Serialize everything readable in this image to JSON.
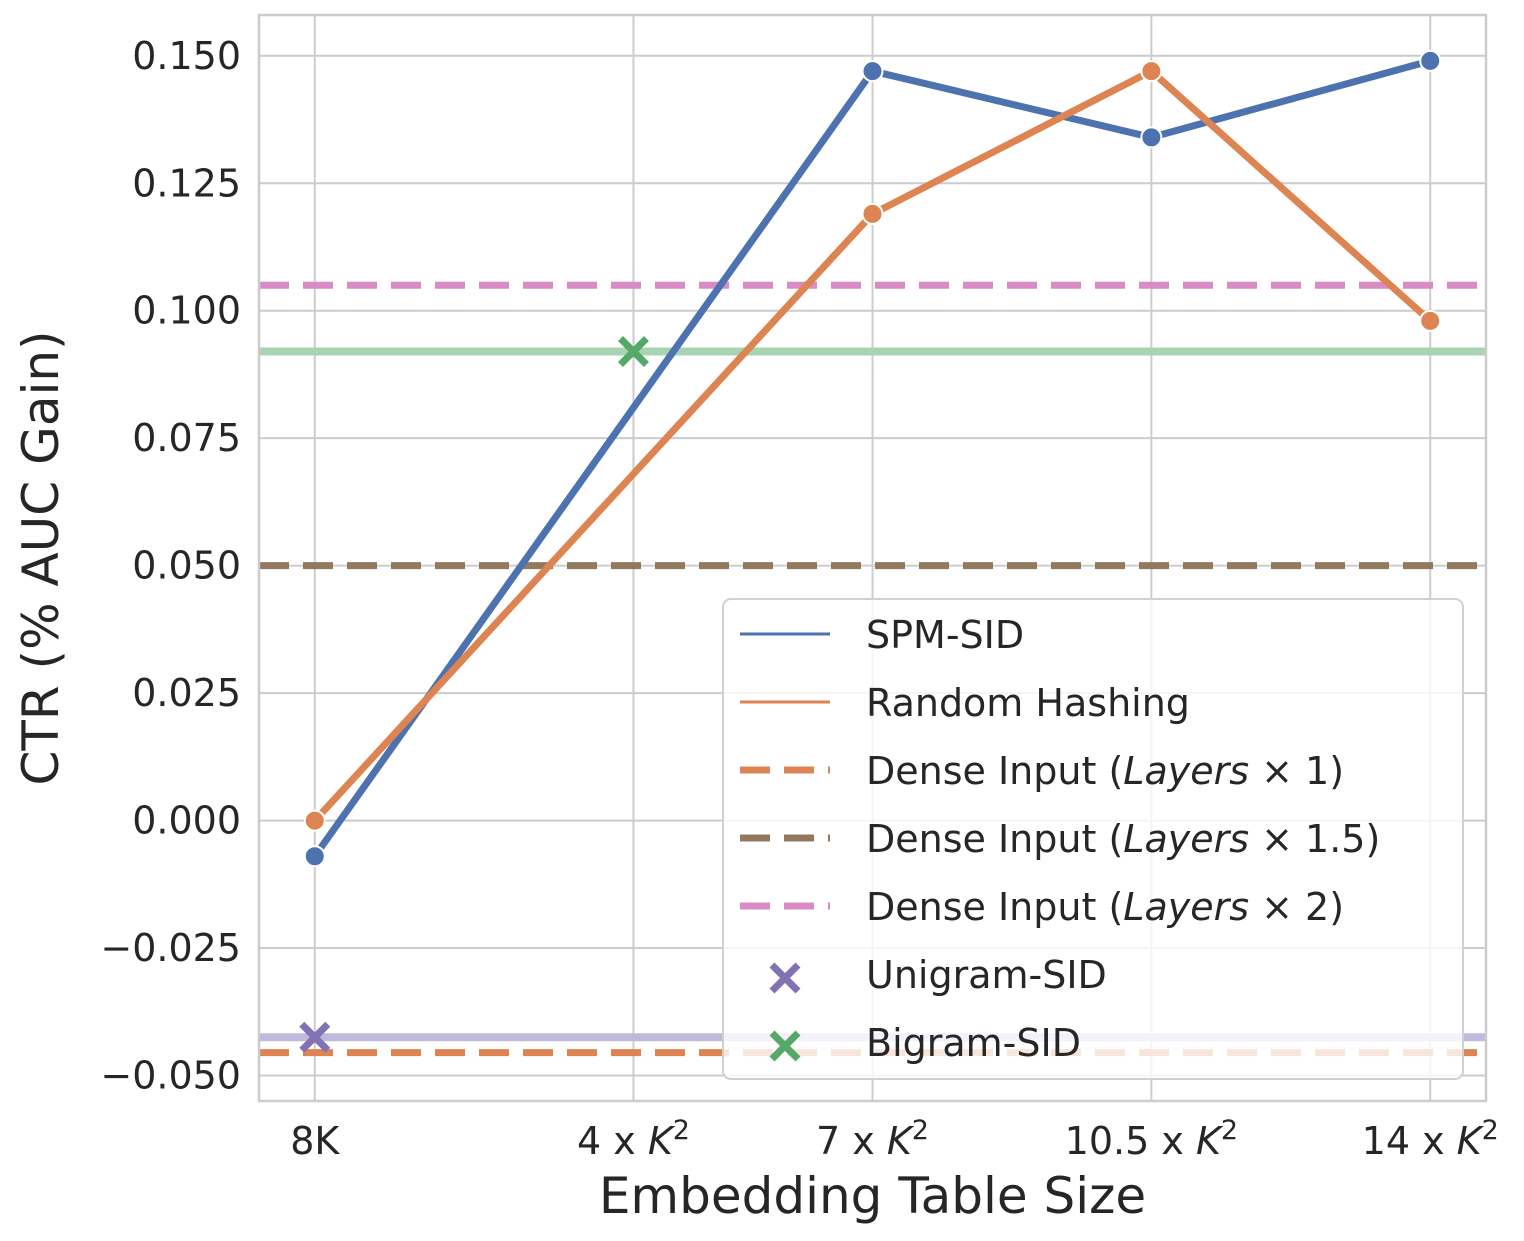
{
  "chart_data": {
    "type": "line",
    "title": "",
    "xlabel": "Embedding Table Size",
    "ylabel": "CTR (% AUC Gain)",
    "x": [
      0,
      4,
      7,
      10.5,
      14
    ],
    "xlim": [
      -0.7,
      14.7
    ],
    "ylim": [
      -0.055,
      0.158
    ],
    "x_ticks": [
      {
        "x": 0,
        "label": "8K",
        "sup": ""
      },
      {
        "x": 4,
        "label": "4 x K",
        "sup": "2"
      },
      {
        "x": 7,
        "label": "7 x K",
        "sup": "2"
      },
      {
        "x": 10.5,
        "label": "10.5 x K",
        "sup": "2"
      },
      {
        "x": 14,
        "label": "14 x K",
        "sup": "2"
      }
    ],
    "y_ticks": [
      {
        "value": 0.15,
        "label": "0.150"
      },
      {
        "value": 0.125,
        "label": "0.125"
      },
      {
        "value": 0.1,
        "label": "0.100"
      },
      {
        "value": 0.075,
        "label": "0.075"
      },
      {
        "value": 0.05,
        "label": "0.050"
      },
      {
        "value": 0.025,
        "label": "0.025"
      },
      {
        "value": 0.0,
        "label": "0.000"
      },
      {
        "value": -0.025,
        "label": "−0.025"
      },
      {
        "value": -0.05,
        "label": "−0.050"
      }
    ],
    "grid": true,
    "legend_position": "lower-right",
    "series": [
      {
        "name": "SPM-SID",
        "x": [
          0,
          7,
          10.5,
          14
        ],
        "values": [
          -0.007,
          0.147,
          0.134,
          0.149
        ],
        "color": "#4c72b0"
      },
      {
        "name": "Random Hashing",
        "x": [
          0,
          7,
          10.5,
          14
        ],
        "values": [
          0.0,
          0.119,
          0.147,
          0.098
        ],
        "color": "#dd8452"
      }
    ],
    "reference_lines": [
      {
        "label_prefix": "Dense Input (",
        "label_italic": "Layers",
        "label_suffix": " × 1)",
        "value": -0.0455,
        "color": "#dd8452",
        "style": "dashed"
      },
      {
        "label_prefix": "Dense Input (",
        "label_italic": "Layers",
        "label_suffix": " × 1.5)",
        "value": 0.05,
        "color": "#937860",
        "style": "dashed"
      },
      {
        "label_prefix": "Dense Input (",
        "label_italic": "Layers",
        "label_suffix": " × 2)",
        "value": 0.105,
        "color": "#da8bc3",
        "style": "dashed"
      }
    ],
    "markers": [
      {
        "name": "Unigram-SID",
        "x": 0,
        "value": -0.0425,
        "color": "#8172b3",
        "hline_color": "#c0b9de"
      },
      {
        "name": "Bigram-SID",
        "x": 4,
        "value": 0.092,
        "color": "#55a868",
        "hline_color": "#a8d4b3"
      }
    ]
  }
}
